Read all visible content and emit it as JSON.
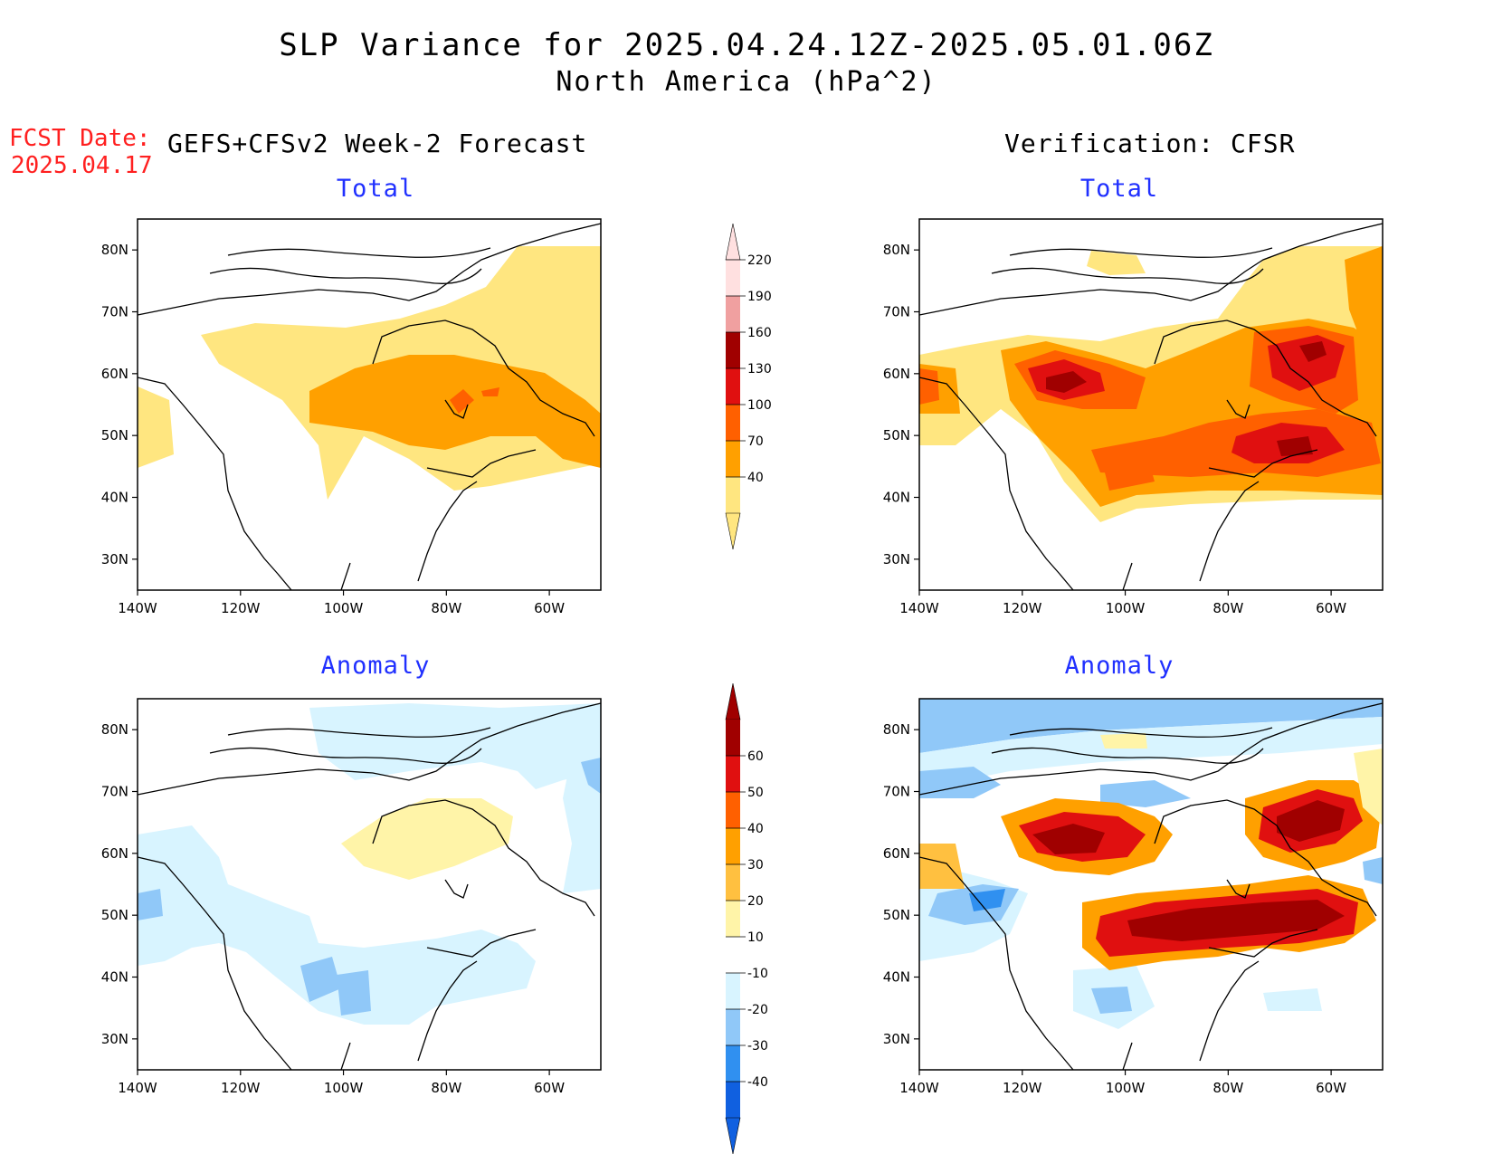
{
  "header": {
    "title_line1": "SLP Variance for 2025.04.24.12Z-2025.05.01.06Z",
    "title_line2": "North America (hPa^2)",
    "fcst_label": "FCST Date:",
    "fcst_date": "2025.04.17",
    "left_subtitle": "GEFS+CFSv2 Week-2 Forecast",
    "right_subtitle": "Verification: CFSR"
  },
  "panels": {
    "top_left_title": "Total",
    "top_right_title": "Total",
    "bottom_left_title": "Anomaly",
    "bottom_right_title": "Anomaly"
  },
  "axes": {
    "lat_labels": [
      "80N",
      "70N",
      "60N",
      "50N",
      "40N",
      "30N"
    ],
    "lon_labels": [
      "140W",
      "120W",
      "100W",
      "80W",
      "60W"
    ],
    "lat_values": [
      80,
      70,
      60,
      50,
      40,
      30
    ],
    "lon_values": [
      -140,
      -120,
      -100,
      -80,
      -60
    ],
    "lat_range": [
      25,
      85
    ],
    "lon_range": [
      -140,
      -50
    ]
  },
  "colorbar_total": {
    "labels": [
      "40",
      "70",
      "100",
      "130",
      "160",
      "190",
      "220"
    ],
    "colors": [
      "#ffe680",
      "#ffa000",
      "#ff6000",
      "#e01010",
      "#a00000",
      "#f0a0a0",
      "#ffe0e0"
    ]
  },
  "colorbar_anomaly": {
    "labels": [
      "-40",
      "-30",
      "-20",
      "-10",
      "10",
      "20",
      "30",
      "40",
      "50",
      "60"
    ],
    "colors": [
      "#1060e0",
      "#3090f0",
      "#90c8f8",
      "#d8f4ff",
      "#ffffff",
      "#fff4a8",
      "#ffc040",
      "#ffa000",
      "#ff6000",
      "#e01010",
      "#a00000"
    ]
  },
  "colors": {
    "title_blue": "#2030ff",
    "fcst_red": "#ff2020"
  }
}
